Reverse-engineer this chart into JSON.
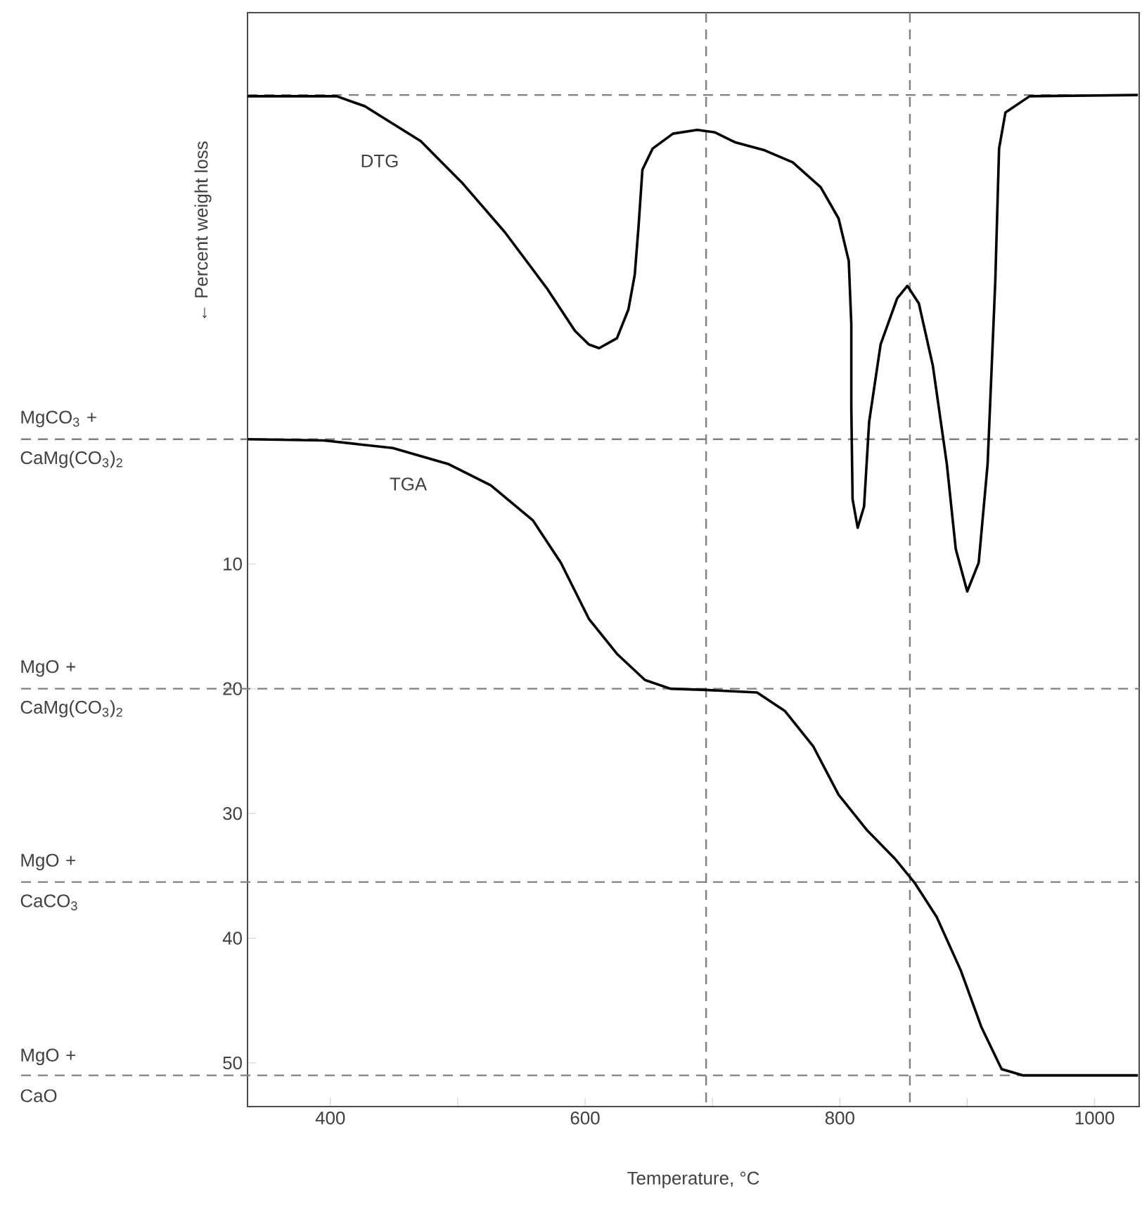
{
  "chart_data": {
    "type": "line",
    "xlabel": "Temperature, °C",
    "ylabel": "← Percent weight loss",
    "xlim": [
      335,
      1035
    ],
    "ylim": [
      53.5,
      -34.2
    ],
    "xticks": [
      400,
      {
        "value": 500,
        "label": null
      },
      600,
      {
        "value": 700,
        "label": null
      },
      800,
      {
        "value": 900,
        "label": null
      },
      1000
    ],
    "yticks": [
      10,
      20,
      30,
      40,
      50
    ],
    "line_style": "solid",
    "series": [
      {
        "name": "DTG",
        "color": "#000000",
        "x": [
          335,
          405,
          427,
          471,
          504,
          537,
          570,
          592,
          603,
          611,
          625,
          634,
          639,
          642,
          645,
          653,
          669,
          688,
          702,
          718,
          740,
          763,
          785,
          799,
          807,
          809,
          809,
          810,
          814,
          819,
          823,
          832,
          845,
          853,
          862,
          873,
          884,
          891,
          900,
          909,
          916,
          922,
          925,
          930,
          949,
          1034
        ],
        "values": [
          -27.5,
          -27.5,
          -26.7,
          -23.9,
          -20.5,
          -16.6,
          -12.1,
          -8.7,
          -7.6,
          -7.3,
          -8.1,
          -10.4,
          -13.2,
          -17.1,
          -21.6,
          -23.3,
          -24.5,
          -24.8,
          -24.6,
          -23.8,
          -23.2,
          -22.2,
          -20.2,
          -17.7,
          -14.3,
          -9.2,
          -2.5,
          4.8,
          7.1,
          5.4,
          -1.4,
          -7.6,
          -11.3,
          -12.3,
          -10.9,
          -5.9,
          2.0,
          8.8,
          12.2,
          9.9,
          2.0,
          -12.6,
          -23.3,
          -26.2,
          -27.5,
          -27.6
        ]
      },
      {
        "name": "TGA",
        "color": "#000000",
        "x": [
          335,
          395,
          449,
          493,
          526,
          559,
          581,
          603,
          625,
          647,
          667,
          695,
          735,
          757,
          779,
          799,
          821,
          843,
          859,
          876,
          895,
          911,
          927,
          944,
          1034
        ],
        "values": [
          0,
          0.1,
          0.7,
          2.0,
          3.7,
          6.5,
          9.9,
          14.4,
          17.2,
          19.3,
          20.0,
          20.1,
          20.3,
          21.8,
          24.6,
          28.5,
          31.3,
          33.6,
          35.6,
          38.3,
          42.6,
          47.1,
          50.5,
          51.0,
          51.0
        ]
      }
    ],
    "ref_lines": [
      {
        "axis": "y",
        "value": -27.6,
        "color": "#808080",
        "line_style": "dashed"
      },
      {
        "axis": "y",
        "value": 0,
        "label": "MgCO$_{3}$ + CaMg(CO$_{3}$)$_{2}$",
        "color": "#808080",
        "line_style": "dashed"
      },
      {
        "axis": "y",
        "value": 20,
        "label": "MgO + CaMg(CO$_{3}$)$_{2}$",
        "color": "#808080",
        "line_style": "dashed"
      },
      {
        "axis": "y",
        "value": 35.5,
        "label": "MgO + CaCO$_{3}$",
        "color": "#808080",
        "line_style": "dashed"
      },
      {
        "axis": "y",
        "value": 51,
        "label": "MgO + CaO",
        "color": "#808080",
        "line_style": "dashed"
      },
      {
        "axis": "x",
        "value": 695,
        "color": "#808080",
        "line_style": "dashed"
      },
      {
        "axis": "x",
        "value": 855,
        "color": "#808080",
        "line_style": "dashed"
      }
    ]
  }
}
